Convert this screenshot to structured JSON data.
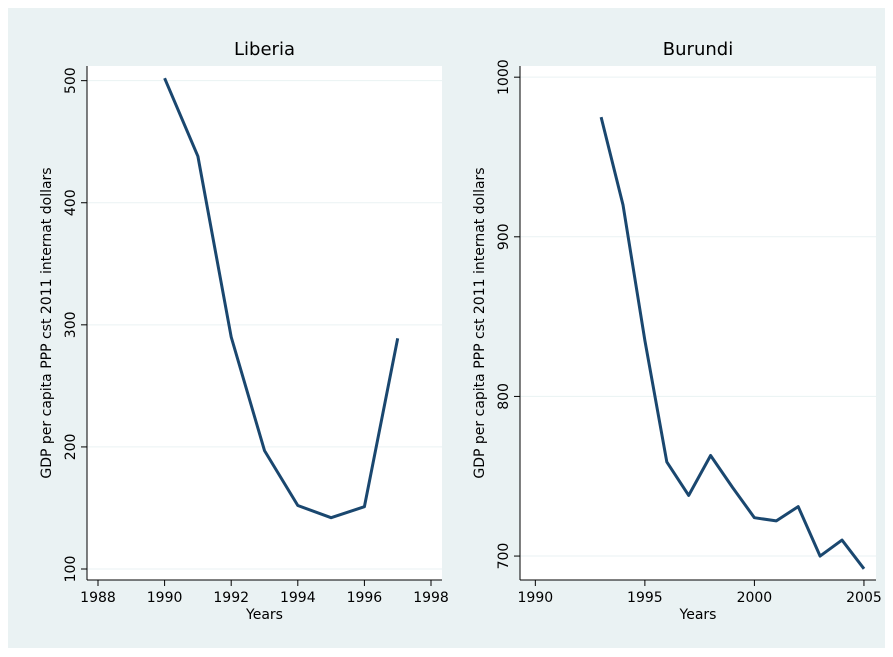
{
  "chart_data": [
    {
      "type": "line",
      "title": "Liberia",
      "x_label": "Years",
      "y_label": "GDP per capita PPP cst 2011 internat dollars",
      "x": [
        1990,
        1991,
        1992,
        1993,
        1994,
        1995,
        1996,
        1997
      ],
      "values": [
        502,
        438,
        290,
        197,
        152,
        142,
        151,
        289
      ],
      "color": "#1a476f",
      "grid": true,
      "xlim": [
        1987.67,
        1998.33
      ],
      "xticks": [
        1988,
        1990,
        1992,
        1994,
        1996,
        1998
      ],
      "ylim": [
        91,
        512
      ],
      "yticks": [
        100,
        200,
        300,
        400,
        500
      ]
    },
    {
      "type": "line",
      "title": "Burundi",
      "x_label": "Years",
      "y_label": "GDP per capita PPP cst 2011 internat dollars",
      "x": [
        1993,
        1994,
        1995,
        1996,
        1997,
        1998,
        1999,
        2000,
        2001,
        2002,
        2003,
        2004,
        2005
      ],
      "values": [
        975,
        920,
        835,
        759,
        738,
        763,
        743,
        724,
        722,
        731,
        700,
        710,
        692
      ],
      "color": "#1a476f",
      "grid": true,
      "xlim": [
        1989.3,
        2005.55
      ],
      "xticks": [
        1990,
        1995,
        2000,
        2005
      ],
      "ylim": [
        685,
        1007
      ],
      "yticks": [
        700,
        800,
        900,
        1000
      ]
    }
  ]
}
